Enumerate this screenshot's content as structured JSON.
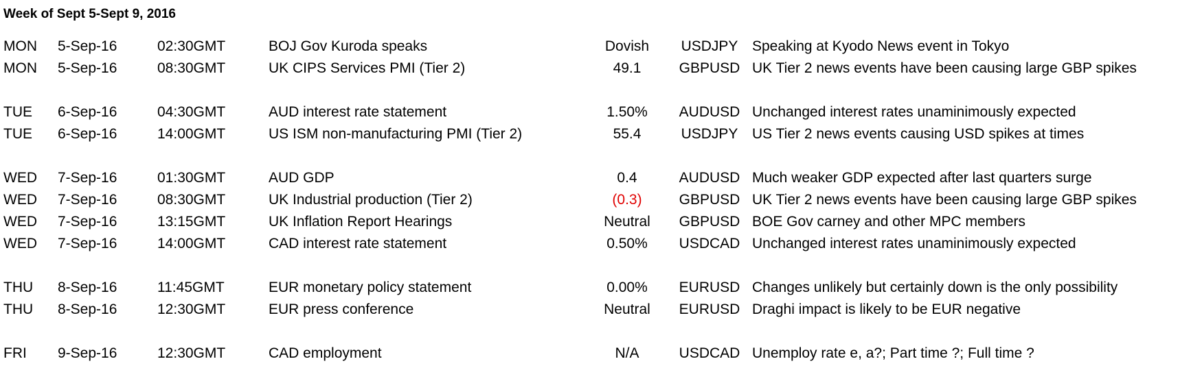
{
  "title": "Week of Sept 5-Sept 9, 2016",
  "rows": [
    {
      "day": "MON",
      "date": "5-Sep-16",
      "time": "02:30GMT",
      "event": "BOJ Gov Kuroda speaks",
      "value": "Dovish",
      "pair": "USDJPY",
      "note": "Speaking at Kyodo News event in Tokyo"
    },
    {
      "day": "MON",
      "date": "5-Sep-16",
      "time": "08:30GMT",
      "event": "UK CIPS Services PMI (Tier 2)",
      "value": "49.1",
      "pair": "GBPUSD",
      "note": "UK Tier 2 news events have been causing large GBP spikes"
    },
    {
      "gap": true
    },
    {
      "day": "TUE",
      "date": "6-Sep-16",
      "time": "04:30GMT",
      "event": "AUD interest rate statement",
      "value": "1.50%",
      "pair": "AUDUSD",
      "note": "Unchanged interest rates unaminimously expected"
    },
    {
      "day": "TUE",
      "date": "6-Sep-16",
      "time": "14:00GMT",
      "event": "US ISM non-manufacturing PMI (Tier 2)",
      "value": "55.4",
      "pair": "USDJPY",
      "note": "US Tier 2 news events causing USD spikes at times"
    },
    {
      "gap": true
    },
    {
      "day": "WED",
      "date": "7-Sep-16",
      "time": "01:30GMT",
      "event": "AUD GDP",
      "value": "0.4",
      "pair": "AUDUSD",
      "note": "Much weaker GDP expected after last quarters surge"
    },
    {
      "day": "WED",
      "date": "7-Sep-16",
      "time": "08:30GMT",
      "event": "UK Industrial production (Tier 2)",
      "value": "(0.3)",
      "negative": true,
      "pair": "GBPUSD",
      "note": "UK Tier 2 news events have been causing large GBP spikes"
    },
    {
      "day": "WED",
      "date": "7-Sep-16",
      "time": "13:15GMT",
      "event": "UK Inflation Report Hearings",
      "value": "Neutral",
      "pair": "GBPUSD",
      "note": "BOE Gov carney and other MPC members"
    },
    {
      "day": "WED",
      "date": "7-Sep-16",
      "time": "14:00GMT",
      "event": "CAD interest rate statement",
      "value": "0.50%",
      "pair": "USDCAD",
      "note": "Unchanged interest rates unaminimously expected"
    },
    {
      "gap": true
    },
    {
      "day": "THU",
      "date": "8-Sep-16",
      "time": "11:45GMT",
      "event": "EUR monetary policy statement",
      "value": "0.00%",
      "pair": "EURUSD",
      "note": "Changes unlikely but certainly down is the only possibility"
    },
    {
      "day": "THU",
      "date": "8-Sep-16",
      "time": "12:30GMT",
      "event": "EUR press conference",
      "value": "Neutral",
      "pair": "EURUSD",
      "note": "Draghi impact is likely to be EUR negative"
    },
    {
      "gap": true
    },
    {
      "day": "FRI",
      "date": "9-Sep-16",
      "time": "12:30GMT",
      "event": "CAD employment",
      "value": "N/A",
      "pair": "USDCAD",
      "note": "Unemploy rate e, a?;  Part time ?; Full time ?"
    }
  ],
  "colors": {
    "text": "#000000",
    "negative": "#e00000",
    "background": "#ffffff"
  }
}
